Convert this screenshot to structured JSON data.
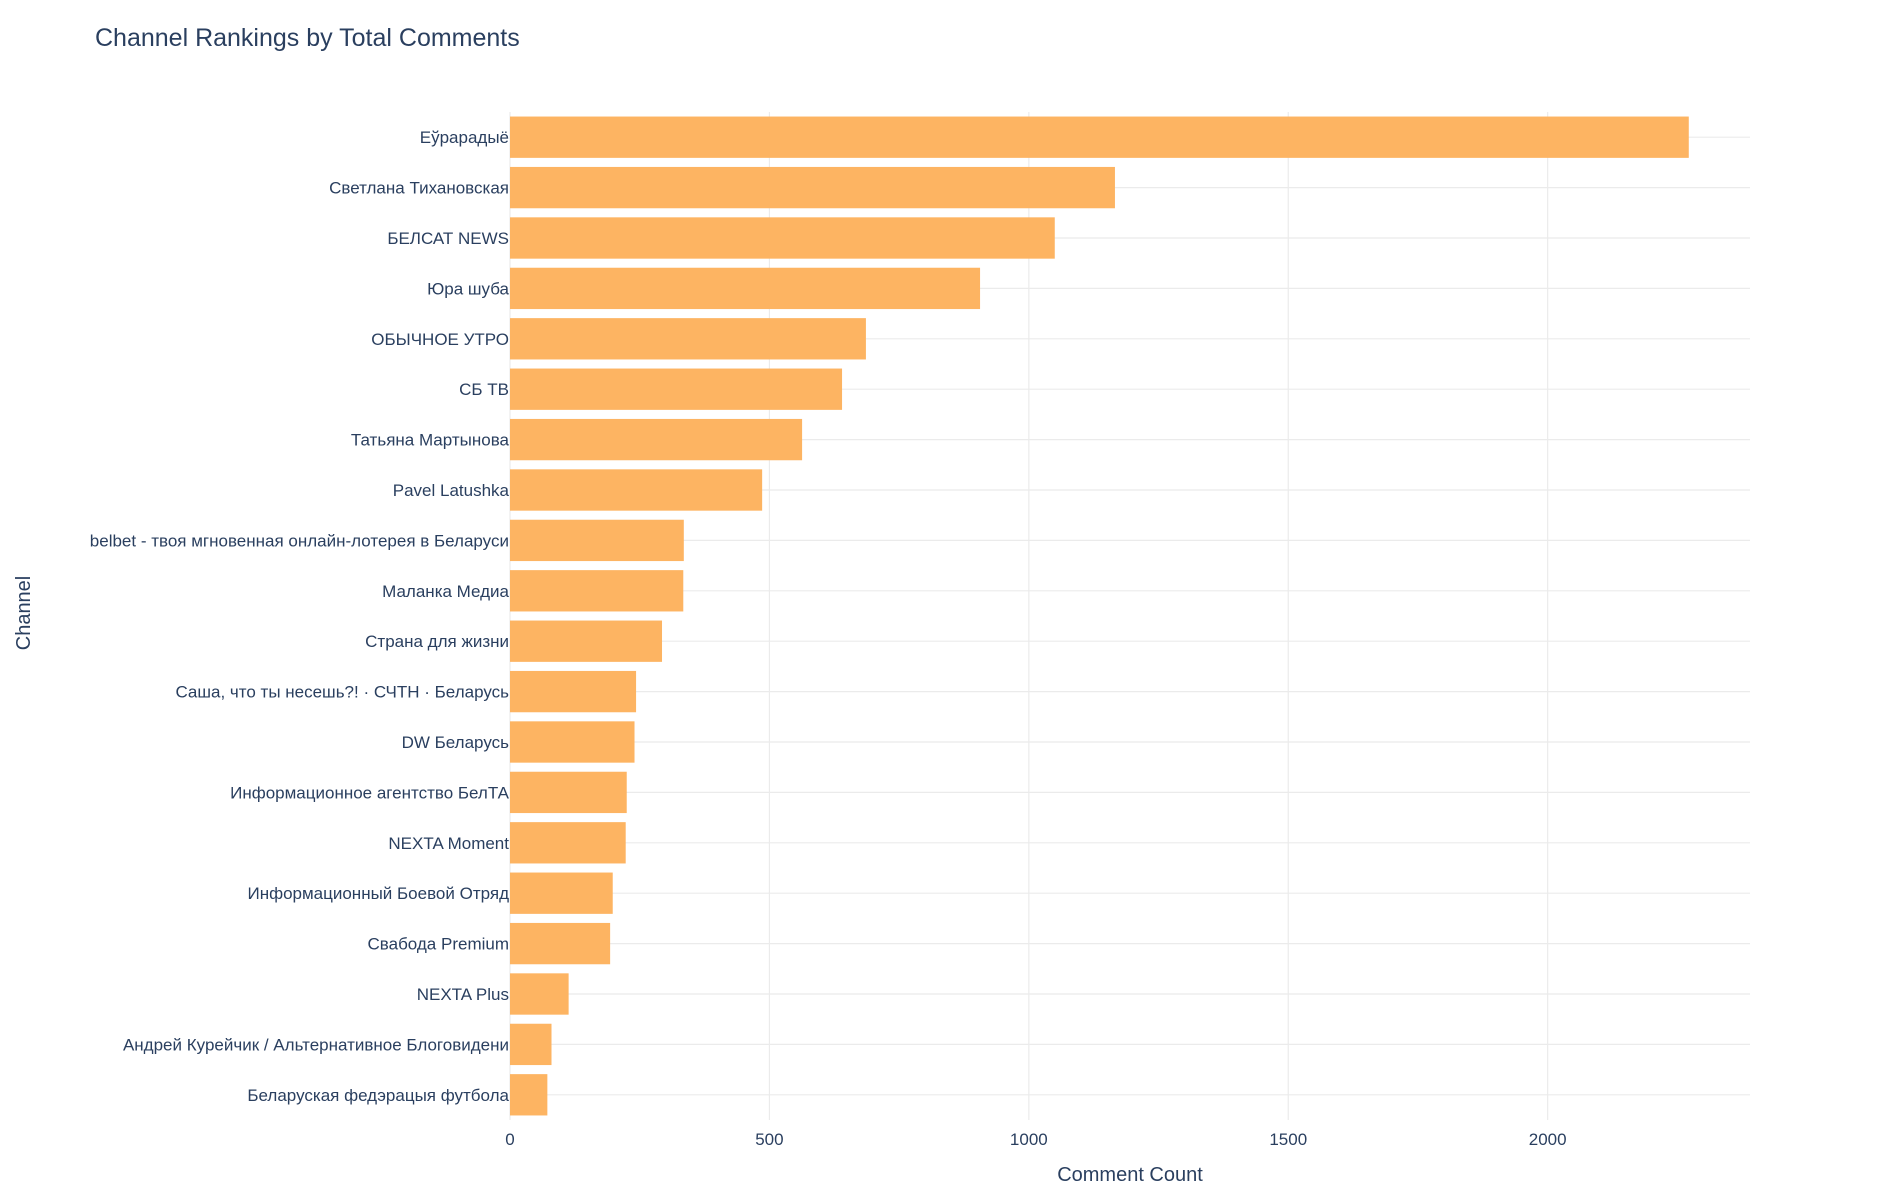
{
  "chart_data": {
    "type": "bar",
    "orientation": "horizontal",
    "title": "Channel Rankings by Total Comments",
    "xlabel": "Comment Count",
    "ylabel": "Channel",
    "xlim": [
      0,
      2390
    ],
    "x_ticks": [
      0,
      500,
      1000,
      1500,
      2000
    ],
    "grid": true,
    "bar_color": "#fdb462",
    "categories": [
      "Еўрарадыё",
      "Светлана Тихановская",
      "БЕЛСАТ NEWS",
      "Юра шуба",
      "ОБЫЧНОЕ УТРО",
      "СБ ТВ",
      "Татьяна Мартынова",
      "Pavel Latushka",
      "belbet - твоя мгновенная онлайн-лотерея в Беларуси",
      "Маланка Медиа",
      "Страна для жизни",
      "Саша, что ты несешь?! · СЧТН · Беларусь",
      "DW Беларусь",
      "Информационное агентство БелТА",
      "NEXTA Moment",
      "Информационный Боевой Отряд",
      "Свабода Premium",
      "NEXTA Plus",
      "Андрей Курейчик / Альтернативное Блоговидени",
      "Беларуская федэрацыя футбола"
    ],
    "values": [
      2272,
      1166,
      1050,
      906,
      686,
      640,
      563,
      486,
      335,
      334,
      293,
      243,
      240,
      225,
      223,
      198,
      193,
      113,
      80,
      72
    ]
  }
}
